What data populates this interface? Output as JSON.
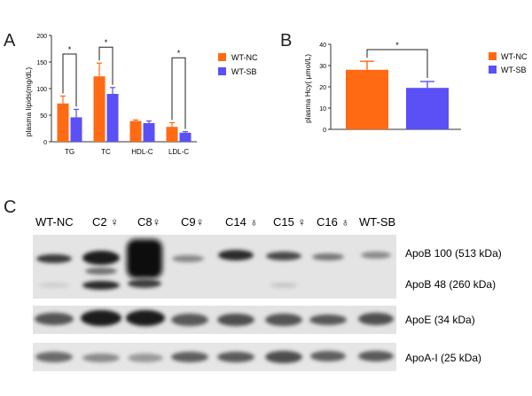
{
  "panels": {
    "a": "A",
    "b": "B",
    "c": "C"
  },
  "colors": {
    "nc": "#FF6A13",
    "sb": "#5A50F5",
    "axis": "#333333"
  },
  "chart_data": [
    {
      "type": "bar",
      "ylabel": "plasma lipids(mg/dL)",
      "ylim": [
        0,
        200
      ],
      "yticks": [
        "0",
        "50",
        "100",
        "150",
        "200"
      ],
      "categories": [
        "TG",
        "TC",
        "HDL-C",
        "LDL-C"
      ],
      "series": [
        {
          "name": "WT-NC",
          "values": [
            72,
            123,
            39,
            28
          ],
          "errors": [
            14,
            25,
            2,
            8
          ]
        },
        {
          "name": "WT-SB",
          "values": [
            46,
            90,
            35,
            17
          ],
          "errors": [
            15,
            12,
            4,
            2
          ]
        }
      ],
      "significance": [
        {
          "category": "TG",
          "label": "*"
        },
        {
          "category": "TC",
          "label": "*"
        },
        {
          "category": "LDL-C",
          "label": "*"
        }
      ],
      "legend_position": "right"
    },
    {
      "type": "bar",
      "ylabel": "plasma Hcy( μmol/L)",
      "ylim": [
        0,
        40
      ],
      "yticks": [
        "0",
        "10",
        "20",
        "30",
        "40"
      ],
      "categories": [
        "WT-NC",
        "WT-SB"
      ],
      "values": [
        28,
        19.5
      ],
      "errors": [
        4,
        3
      ],
      "significance": [
        {
          "label": "*"
        }
      ],
      "legend_position": "right"
    }
  ],
  "blot": {
    "lanes": [
      "WT-NC",
      "C2 ♀",
      "C8♀",
      "C9♀",
      "C14 ♁",
      "C15 ♀",
      "C16 ♁",
      "WT-SB"
    ],
    "bands": [
      "ApoB 100 (513 kDa)",
      "ApoB 48 (260 kDa)",
      "ApoE (34 kDa)",
      "ApoA-I (25 kDa)"
    ]
  }
}
